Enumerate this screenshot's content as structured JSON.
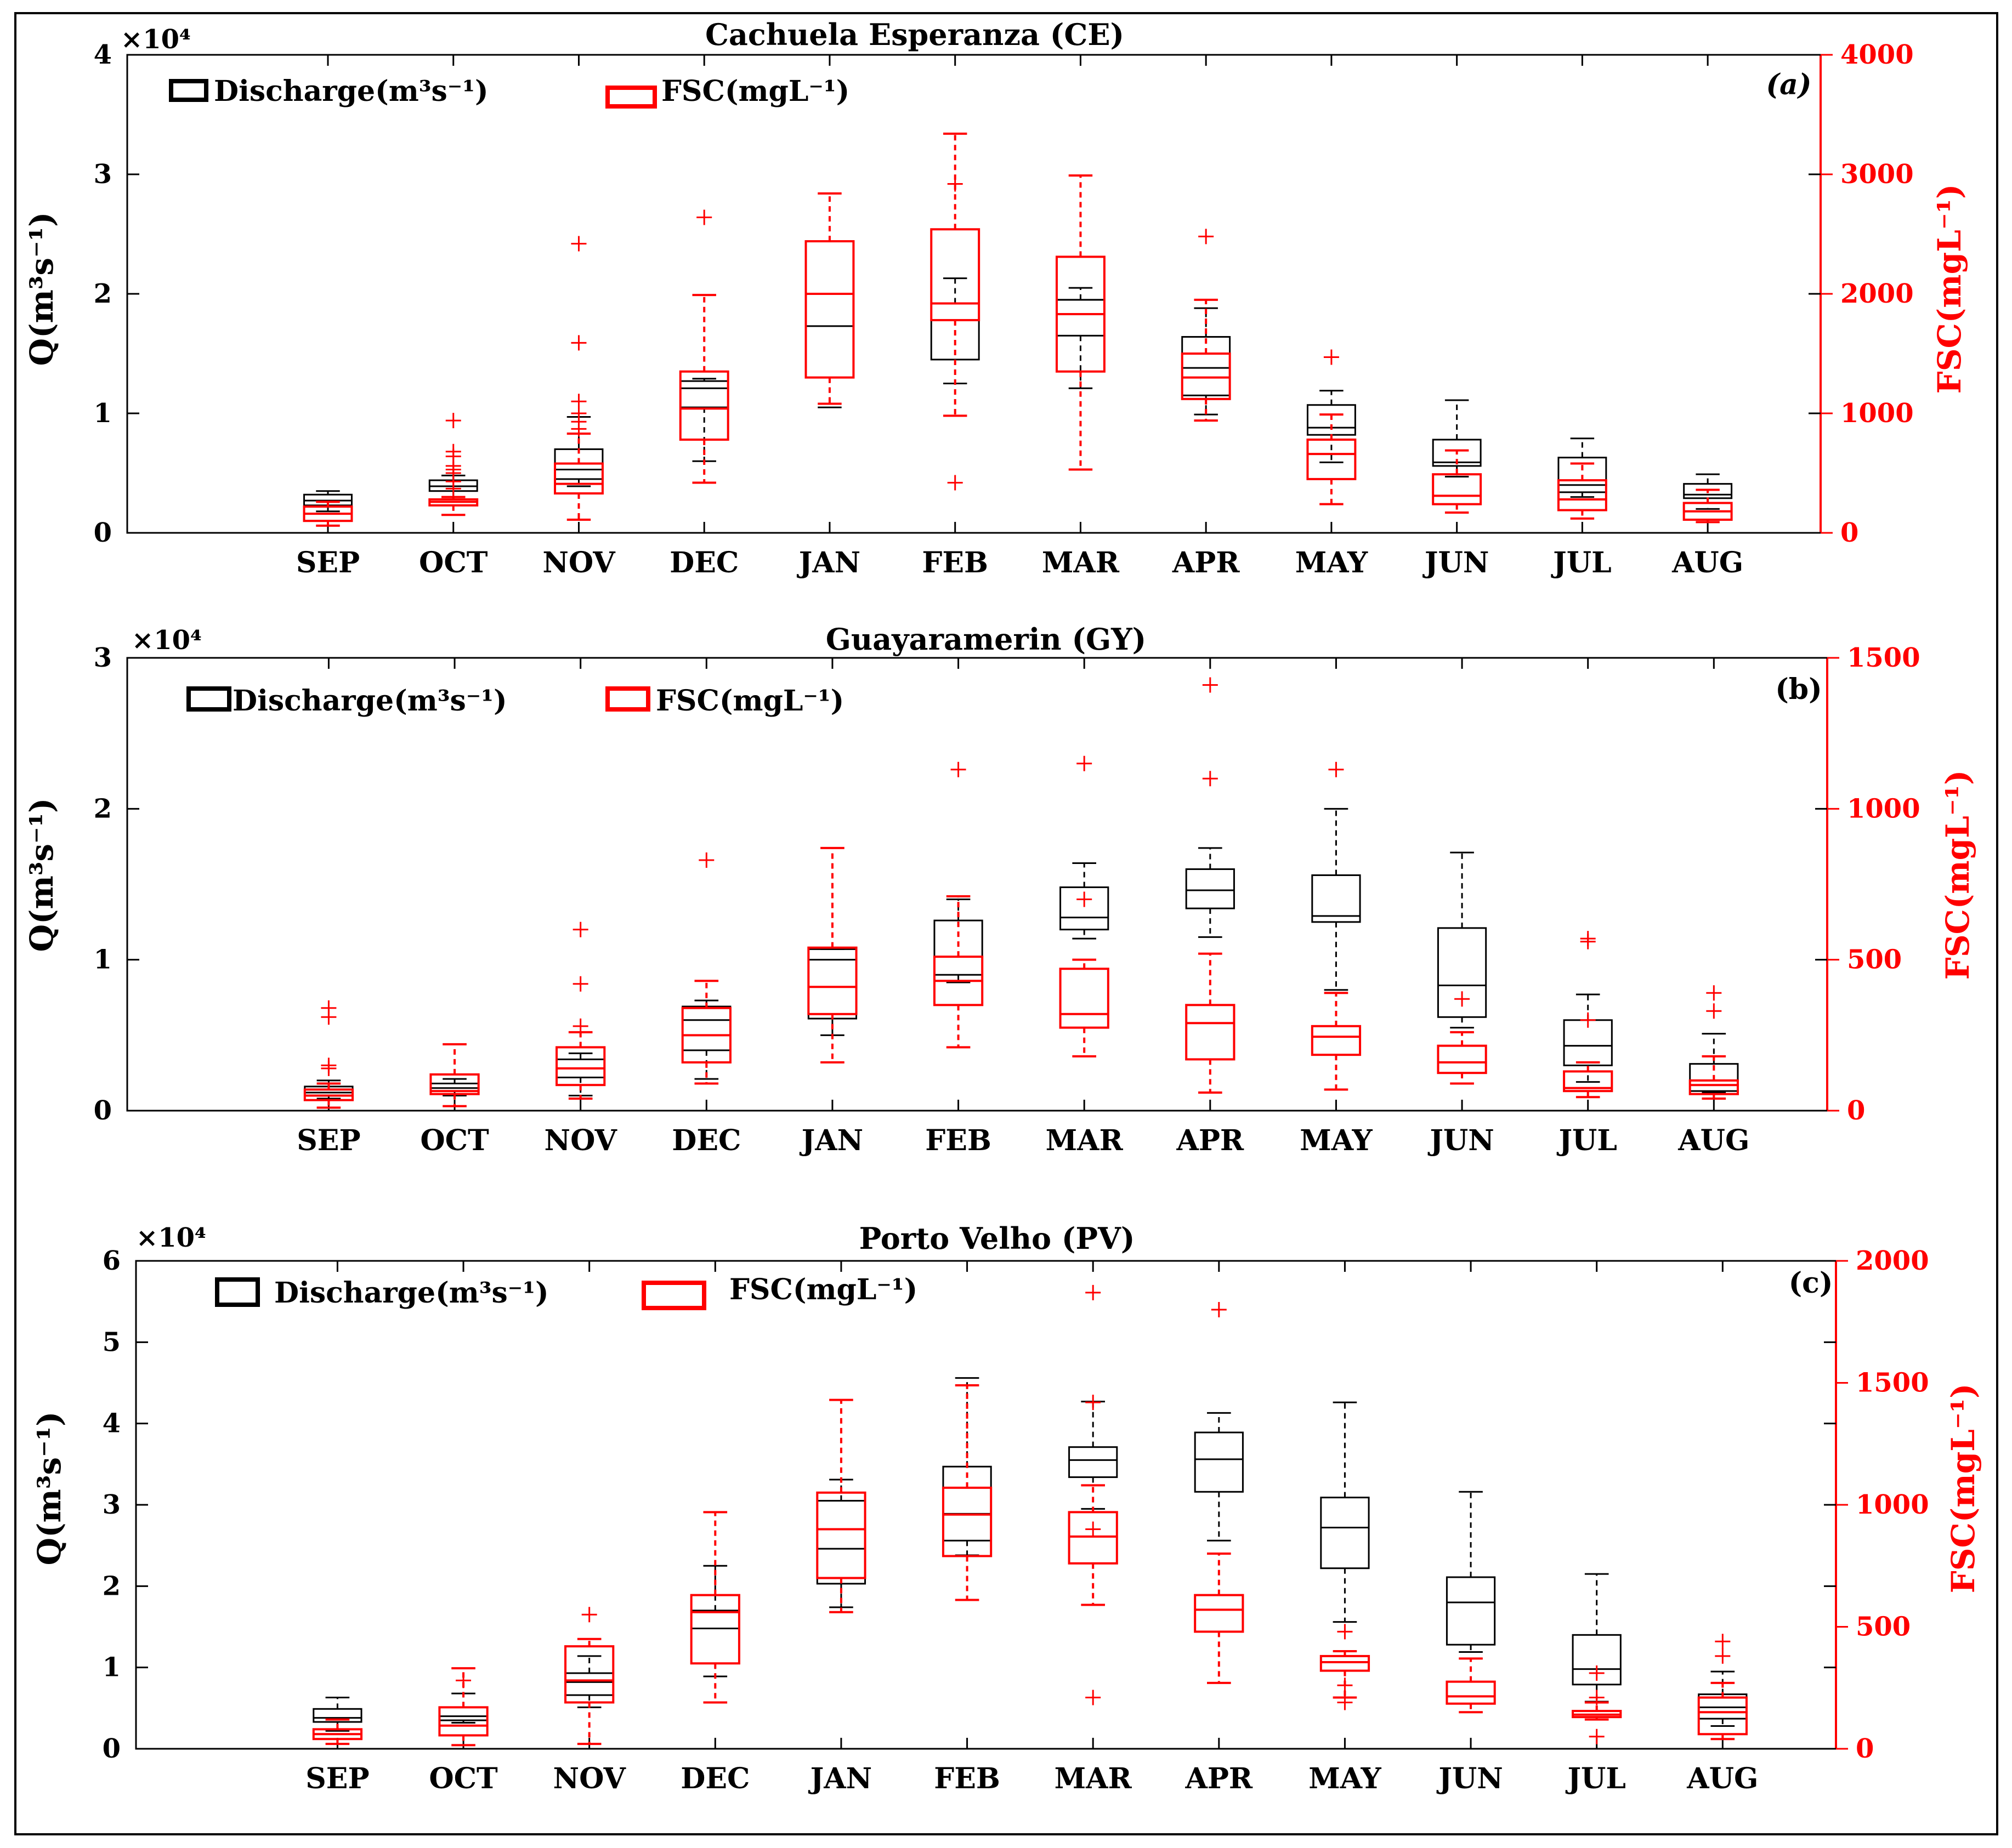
{
  "months": [
    "SEP",
    "OCT",
    "NOV",
    "DEC",
    "JAN",
    "FEB",
    "MAR",
    "APR",
    "MAY",
    "JUN",
    "JUL",
    "AUG"
  ],
  "colors": {
    "discharge": "#000000",
    "fsc": "#ff0000",
    "frame": "#000000"
  },
  "legend": {
    "discharge": "Discharge(m³s⁻¹)",
    "fsc": "FSC(mgL⁻¹)"
  },
  "chart_data": [
    {
      "type": "boxplot",
      "title": "Cachuela Esperanza (CE)",
      "panel_label": "(a)",
      "ylabel_left": "Q(m³s⁻¹)",
      "ylabel_right": "FSC(mgL⁻¹)",
      "exponent": "×10⁴",
      "left_ylim": [
        0,
        4
      ],
      "left_ticks": [
        "0",
        "1",
        "2",
        "3",
        "4"
      ],
      "right_ylim": [
        0,
        4000
      ],
      "right_ticks": [
        "0",
        "1000",
        "2000",
        "3000",
        "4000"
      ],
      "discharge": [
        {
          "whisker_low": 1.8,
          "q1": 2.3,
          "median": 2.7,
          "q3": 3.2,
          "whisker_high": 3.5,
          "outliers": []
        },
        {
          "whisker_low": 3.0,
          "q1": 3.5,
          "median": 3.9,
          "q3": 4.4,
          "whisker_high": 4.8,
          "outliers": []
        },
        {
          "whisker_low": 3.9,
          "q1": 4.5,
          "median": 5.3,
          "q3": 7.0,
          "whisker_high": 9.7,
          "outliers": []
        },
        {
          "whisker_low": 6.0,
          "q1": 10.5,
          "median": 12.1,
          "q3": 12.7,
          "whisker_high": 12.9,
          "outliers": []
        },
        {
          "whisker_low": 10.5,
          "q1": 13.0,
          "median": 17.3,
          "q3": 20.0,
          "whisker_high": 20.0,
          "outliers": []
        },
        {
          "whisker_low": 12.5,
          "q1": 14.5,
          "median": 19.2,
          "q3": 19.2,
          "whisker_high": 21.3,
          "outliers": []
        },
        {
          "whisker_low": 12.1,
          "q1": 16.5,
          "median": 19.5,
          "q3": 19.5,
          "whisker_high": 20.5,
          "outliers": []
        },
        {
          "whisker_low": 9.9,
          "q1": 11.5,
          "median": 13.8,
          "q3": 16.4,
          "whisker_high": 18.8,
          "outliers": []
        },
        {
          "whisker_low": 5.9,
          "q1": 8.2,
          "median": 8.8,
          "q3": 10.7,
          "whisker_high": 11.9,
          "outliers": []
        },
        {
          "whisker_low": 4.7,
          "q1": 5.6,
          "median": 5.9,
          "q3": 7.8,
          "whisker_high": 11.1,
          "outliers": []
        },
        {
          "whisker_low": 3.0,
          "q1": 3.4,
          "median": 4.0,
          "q3": 6.3,
          "whisker_high": 7.9,
          "outliers": []
        },
        {
          "whisker_low": 2.0,
          "q1": 2.9,
          "median": 3.2,
          "q3": 4.1,
          "whisker_high": 4.9,
          "outliers": []
        }
      ],
      "fsc": [
        {
          "whisker_low": 60,
          "q1": 100,
          "median": 160,
          "q3": 220,
          "whisker_high": 260,
          "outliers": []
        },
        {
          "whisker_low": 150,
          "q1": 230,
          "median": 260,
          "q3": 280,
          "whisker_high": 300,
          "outliers": [
            370,
            430,
            500,
            530,
            560,
            640,
            680,
            940
          ]
        },
        {
          "whisker_low": 110,
          "q1": 330,
          "median": 410,
          "q3": 580,
          "whisker_high": 830,
          "outliers": [
            1000,
            1100,
            1590,
            2420,
            870,
            930
          ]
        },
        {
          "whisker_low": 420,
          "q1": 780,
          "median": 1040,
          "q3": 1350,
          "whisker_high": 1990,
          "outliers": [
            2640
          ]
        },
        {
          "whisker_low": 1080,
          "q1": 1300,
          "median": 2000,
          "q3": 2440,
          "whisker_high": 2840,
          "outliers": []
        },
        {
          "whisker_low": 980,
          "q1": 1780,
          "median": 1920,
          "q3": 2540,
          "whisker_high": 3340,
          "outliers": [
            420,
            2920
          ]
        },
        {
          "whisker_low": 530,
          "q1": 1350,
          "median": 1830,
          "q3": 2310,
          "whisker_high": 2990,
          "outliers": []
        },
        {
          "whisker_low": 940,
          "q1": 1120,
          "median": 1300,
          "q3": 1500,
          "whisker_high": 1950,
          "outliers": [
            2480
          ]
        },
        {
          "whisker_low": 240,
          "q1": 450,
          "median": 660,
          "q3": 780,
          "whisker_high": 990,
          "outliers": [
            1470
          ]
        },
        {
          "whisker_low": 170,
          "q1": 240,
          "median": 310,
          "q3": 490,
          "whisker_high": 690,
          "outliers": []
        },
        {
          "whisker_low": 120,
          "q1": 190,
          "median": 280,
          "q3": 440,
          "whisker_high": 580,
          "outliers": []
        },
        {
          "whisker_low": 90,
          "q1": 110,
          "median": 180,
          "q3": 250,
          "whisker_high": 360,
          "outliers": []
        }
      ]
    },
    {
      "type": "boxplot",
      "title": "Guayaramerin (GY)",
      "panel_label": "(b)",
      "ylabel_left": "Q(m³s⁻¹)",
      "ylabel_right": "FSC(mgL⁻¹)",
      "exponent": "×10⁴",
      "left_ylim": [
        0,
        3
      ],
      "left_ticks": [
        "0",
        "1",
        "2",
        "3"
      ],
      "right_ylim": [
        0,
        1500
      ],
      "right_ticks": [
        "0",
        "500",
        "1000",
        "1500"
      ],
      "discharge": [
        {
          "whisker_low": 0.8,
          "q1": 1.0,
          "median": 1.2,
          "q3": 1.6,
          "whisker_high": 2.0,
          "outliers": []
        },
        {
          "whisker_low": 1.0,
          "q1": 1.3,
          "median": 1.5,
          "q3": 1.8,
          "whisker_high": 2.1,
          "outliers": []
        },
        {
          "whisker_low": 1.0,
          "q1": 2.2,
          "median": 2.8,
          "q3": 3.4,
          "whisker_high": 3.8,
          "outliers": []
        },
        {
          "whisker_low": 2.1,
          "q1": 4.0,
          "median": 6.0,
          "q3": 6.9,
          "whisker_high": 7.3,
          "outliers": []
        },
        {
          "whisker_low": 5.0,
          "q1": 6.1,
          "median": 10.0,
          "q3": 10.7,
          "whisker_high": 10.7,
          "outliers": []
        },
        {
          "whisker_low": 8.5,
          "q1": 9.0,
          "median": 10.2,
          "q3": 12.6,
          "whisker_high": 14.0,
          "outliers": []
        },
        {
          "whisker_low": 11.4,
          "q1": 12.0,
          "median": 12.8,
          "q3": 14.8,
          "whisker_high": 16.4,
          "outliers": []
        },
        {
          "whisker_low": 11.5,
          "q1": 13.4,
          "median": 14.6,
          "q3": 16.0,
          "whisker_high": 17.4,
          "outliers": []
        },
        {
          "whisker_low": 8.0,
          "q1": 12.5,
          "median": 12.9,
          "q3": 15.6,
          "whisker_high": 20.0,
          "outliers": []
        },
        {
          "whisker_low": 5.5,
          "q1": 6.2,
          "median": 8.3,
          "q3": 12.1,
          "whisker_high": 17.1,
          "outliers": []
        },
        {
          "whisker_low": 1.9,
          "q1": 3.0,
          "median": 4.3,
          "q3": 6.0,
          "whisker_high": 7.7,
          "outliers": []
        },
        {
          "whisker_low": 1.2,
          "q1": 1.3,
          "median": 2.0,
          "q3": 3.1,
          "whisker_high": 5.1,
          "outliers": []
        }
      ],
      "fsc": [
        {
          "whisker_low": 10,
          "q1": 35,
          "median": 50,
          "q3": 70,
          "whisker_high": 90,
          "outliers": [
            140,
            150,
            310,
            340
          ]
        },
        {
          "whisker_low": 15,
          "q1": 55,
          "median": 65,
          "q3": 120,
          "whisker_high": 220,
          "outliers": []
        },
        {
          "whisker_low": 40,
          "q1": 85,
          "median": 140,
          "q3": 210,
          "whisker_high": 260,
          "outliers": [
            280,
            420,
            600
          ]
        },
        {
          "whisker_low": 90,
          "q1": 160,
          "median": 250,
          "q3": 340,
          "whisker_high": 430,
          "outliers": [
            830
          ]
        },
        {
          "whisker_low": 160,
          "q1": 320,
          "median": 410,
          "q3": 540,
          "whisker_high": 870,
          "outliers": []
        },
        {
          "whisker_low": 210,
          "q1": 350,
          "median": 430,
          "q3": 510,
          "whisker_high": 710,
          "outliers": [
            1130
          ]
        },
        {
          "whisker_low": 180,
          "q1": 275,
          "median": 320,
          "q3": 470,
          "whisker_high": 500,
          "outliers": [
            700,
            1150
          ]
        },
        {
          "whisker_low": 60,
          "q1": 170,
          "median": 290,
          "q3": 350,
          "whisker_high": 520,
          "outliers": [
            1100,
            1410
          ]
        },
        {
          "whisker_low": 70,
          "q1": 185,
          "median": 245,
          "q3": 280,
          "whisker_high": 390,
          "outliers": [
            1130
          ]
        },
        {
          "whisker_low": 90,
          "q1": 125,
          "median": 160,
          "q3": 215,
          "whisker_high": 260,
          "outliers": [
            370
          ]
        },
        {
          "whisker_low": 45,
          "q1": 65,
          "median": 75,
          "q3": 130,
          "whisker_high": 160,
          "outliers": [
            300,
            570,
            560
          ]
        },
        {
          "whisker_low": 40,
          "q1": 55,
          "median": 85,
          "q3": 100,
          "whisker_high": 180,
          "outliers": [
            330,
            390
          ]
        }
      ]
    },
    {
      "type": "boxplot",
      "title": "Porto Velho (PV)",
      "panel_label": "(c)",
      "ylabel_left": "Q(m³s⁻¹)",
      "ylabel_right": "FSC(mgL⁻¹)",
      "exponent": "×10⁴",
      "left_ylim": [
        0,
        6
      ],
      "left_ticks": [
        "0",
        "1",
        "2",
        "3",
        "4",
        "5",
        "6"
      ],
      "right_ylim": [
        0,
        2000
      ],
      "right_ticks": [
        "0",
        "500",
        "1000",
        "1500",
        "2000"
      ],
      "discharge": [
        {
          "whisker_low": 2.2,
          "q1": 3.3,
          "median": 3.8,
          "q3": 4.9,
          "whisker_high": 6.3,
          "outliers": []
        },
        {
          "whisker_low": 3.2,
          "q1": 3.5,
          "median": 4.0,
          "q3": 5.1,
          "whisker_high": 6.8,
          "outliers": []
        },
        {
          "whisker_low": 5.1,
          "q1": 6.6,
          "median": 8.2,
          "q3": 9.3,
          "whisker_high": 11.4,
          "outliers": []
        },
        {
          "whisker_low": 8.9,
          "q1": 10.5,
          "median": 14.8,
          "q3": 17.0,
          "whisker_high": 22.5,
          "outliers": []
        },
        {
          "whisker_low": 17.4,
          "q1": 20.3,
          "median": 24.6,
          "q3": 30.5,
          "whisker_high": 33.1,
          "outliers": []
        },
        {
          "whisker_low": 23.8,
          "q1": 25.6,
          "median": 28.9,
          "q3": 34.7,
          "whisker_high": 45.6,
          "outliers": []
        },
        {
          "whisker_low": 29.5,
          "q1": 33.4,
          "median": 35.5,
          "q3": 37.1,
          "whisker_high": 42.7,
          "outliers": []
        },
        {
          "whisker_low": 25.6,
          "q1": 31.6,
          "median": 35.6,
          "q3": 38.9,
          "whisker_high": 41.3,
          "outliers": []
        },
        {
          "whisker_low": 15.6,
          "q1": 22.2,
          "median": 27.2,
          "q3": 30.9,
          "whisker_high": 42.6,
          "outliers": []
        },
        {
          "whisker_low": 11.9,
          "q1": 12.8,
          "median": 18.0,
          "q3": 21.1,
          "whisker_high": 31.6,
          "outliers": []
        },
        {
          "whisker_low": 5.8,
          "q1": 7.9,
          "median": 9.8,
          "q3": 14.0,
          "whisker_high": 21.5,
          "outliers": []
        },
        {
          "whisker_low": 2.8,
          "q1": 3.7,
          "median": 5.1,
          "q3": 6.7,
          "whisker_high": 9.5,
          "outliers": []
        }
      ],
      "fsc": [
        {
          "whisker_low": 20,
          "q1": 40,
          "median": 60,
          "q3": 80,
          "whisker_high": 120,
          "outliers": []
        },
        {
          "whisker_low": 15,
          "q1": 55,
          "median": 95,
          "q3": 170,
          "whisker_high": 330,
          "outliers": [
            280
          ]
        },
        {
          "whisker_low": 20,
          "q1": 190,
          "median": 280,
          "q3": 420,
          "whisker_high": 450,
          "outliers": [
            550
          ]
        },
        {
          "whisker_low": 190,
          "q1": 350,
          "median": 560,
          "q3": 630,
          "whisker_high": 970,
          "outliers": []
        },
        {
          "whisker_low": 560,
          "q1": 700,
          "median": 900,
          "q3": 1050,
          "whisker_high": 1430,
          "outliers": []
        },
        {
          "whisker_low": 610,
          "q1": 790,
          "median": 960,
          "q3": 1070,
          "whisker_high": 1490,
          "outliers": []
        },
        {
          "whisker_low": 590,
          "q1": 760,
          "median": 870,
          "q3": 970,
          "whisker_high": 1080,
          "outliers": [
            210,
            900,
            1420,
            1870
          ]
        },
        {
          "whisker_low": 270,
          "q1": 480,
          "median": 570,
          "q3": 630,
          "whisker_high": 800,
          "outliers": [
            1800
          ]
        },
        {
          "whisker_low": 210,
          "q1": 320,
          "median": 355,
          "q3": 380,
          "whisker_high": 400,
          "outliers": [
            190,
            260,
            480
          ]
        },
        {
          "whisker_low": 150,
          "q1": 185,
          "median": 215,
          "q3": 275,
          "whisker_high": 370,
          "outliers": []
        },
        {
          "whisker_low": 120,
          "q1": 130,
          "median": 140,
          "q3": 155,
          "whisker_high": 190,
          "outliers": [
            50,
            210,
            310
          ]
        },
        {
          "whisker_low": 40,
          "q1": 60,
          "median": 150,
          "q3": 210,
          "whisker_high": 270,
          "outliers": [
            380,
            440
          ]
        }
      ]
    }
  ]
}
